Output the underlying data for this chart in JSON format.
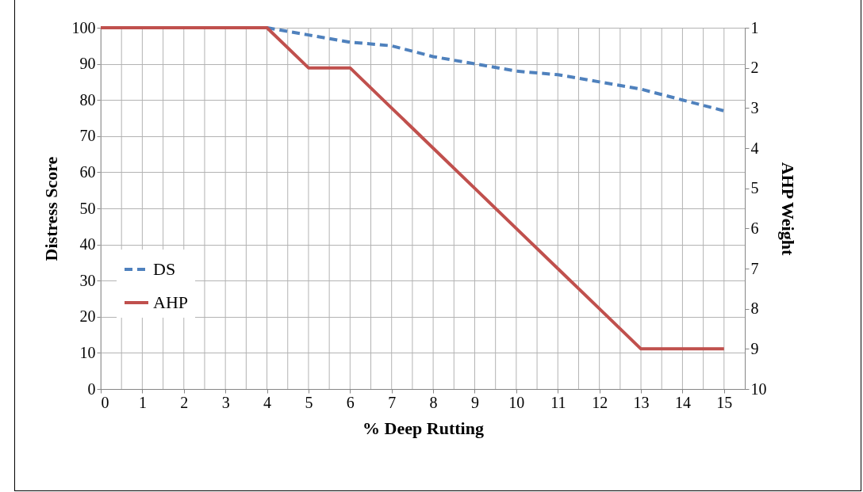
{
  "chart_data": {
    "type": "line",
    "xlabel": "% Deep Rutting",
    "ylabel": "Distress Score",
    "y2label": "AHP Weight",
    "x": [
      0,
      1,
      2,
      3,
      4,
      5,
      6,
      7,
      8,
      9,
      10,
      11,
      12,
      13,
      14,
      15
    ],
    "xlim": [
      0,
      15.5
    ],
    "xticks": [
      0,
      {
        "value": 0.5,
        "label": null
      },
      1,
      {
        "value": 1.5,
        "label": null
      },
      2,
      {
        "value": 2.5,
        "label": null
      },
      3,
      {
        "value": 3.5,
        "label": null
      },
      4,
      {
        "value": 4.5,
        "label": null
      },
      5,
      {
        "value": 5.5,
        "label": null
      },
      6,
      {
        "value": 6.5,
        "label": null
      },
      7,
      {
        "value": 7.5,
        "label": null
      },
      8,
      {
        "value": 8.5,
        "label": null
      },
      9,
      {
        "value": 9.5,
        "label": null
      },
      10,
      {
        "value": 10.5,
        "label": null
      },
      11,
      {
        "value": 11.5,
        "label": null
      },
      12,
      {
        "value": 12.5,
        "label": null
      },
      13,
      {
        "value": 13.5,
        "label": null
      },
      14,
      {
        "value": 14.5,
        "label": null
      },
      15
    ],
    "ylim": [
      0,
      100
    ],
    "yticks": [
      0,
      10,
      20,
      30,
      40,
      50,
      60,
      70,
      80,
      90,
      100
    ],
    "y2lim": [
      10,
      1
    ],
    "y2ticks": [
      1,
      2,
      3,
      4,
      5,
      6,
      7,
      8,
      9,
      10
    ],
    "series": [
      {
        "name": "DS",
        "color": "#4f81bd",
        "line_style": "dashed",
        "values": [
          null,
          null,
          null,
          null,
          100,
          98,
          96,
          95,
          92,
          90,
          88,
          87,
          85,
          83,
          80,
          77
        ]
      },
      {
        "name": "AHP",
        "color": "#c0504d",
        "line_style": "solid",
        "axis": "y2",
        "values": [
          1,
          1,
          1,
          1,
          1,
          2,
          2,
          3,
          4,
          5,
          6,
          7,
          8,
          9,
          9,
          9
        ]
      }
    ],
    "grid": true,
    "legend": "left"
  }
}
